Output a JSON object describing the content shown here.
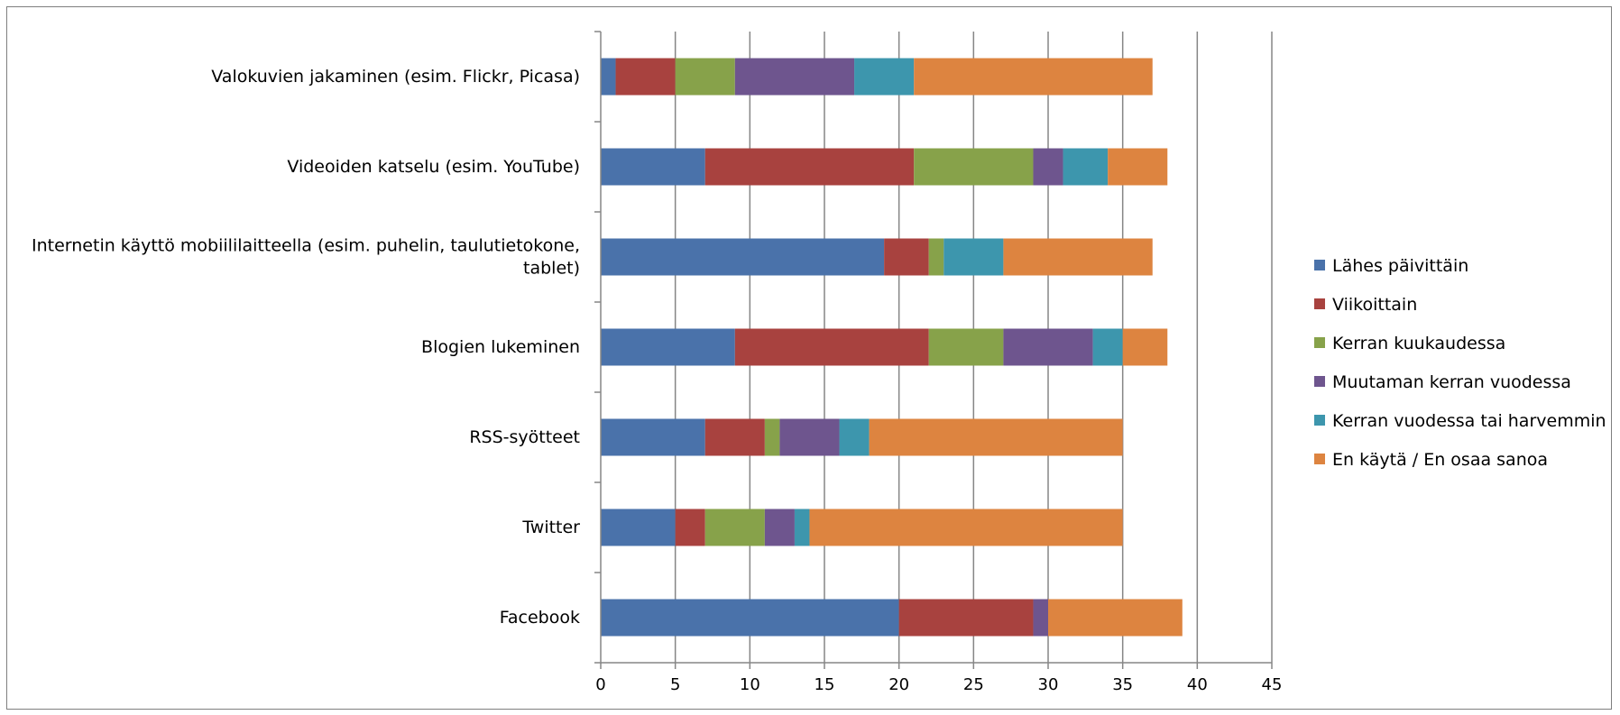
{
  "chart_data": {
    "type": "bar",
    "orientation": "horizontal",
    "stacked": true,
    "categories": [
      [
        "Valokuvien jakaminen (esim. Flickr, Picasa)"
      ],
      [
        "Videoiden katselu (esim. YouTube)"
      ],
      [
        "Internetin käyttö mobiililaitteella (esim. puhelin, taulutietokone,",
        "tablet)"
      ],
      [
        "Blogien lukeminen"
      ],
      [
        "RSS-syötteet"
      ],
      [
        "Twitter"
      ],
      [
        "Facebook"
      ]
    ],
    "series": [
      {
        "name": "Lähes päivittäin",
        "color": "#4a72aa",
        "values": [
          1,
          7,
          19,
          9,
          7,
          5,
          20
        ]
      },
      {
        "name": "Viikoittain",
        "color": "#a8423f",
        "values": [
          4,
          14,
          3,
          13,
          4,
          2,
          9
        ]
      },
      {
        "name": "Kerran kuukaudessa",
        "color": "#87a24a",
        "values": [
          4,
          8,
          1,
          5,
          1,
          4,
          0
        ]
      },
      {
        "name": "Muutaman kerran vuodessa",
        "color": "#6e558e",
        "values": [
          8,
          2,
          0,
          6,
          4,
          2,
          1
        ]
      },
      {
        "name": "Kerran vuodessa tai harvemmin",
        "color": "#3d96ad",
        "values": [
          4,
          3,
          4,
          2,
          2,
          1,
          0
        ]
      },
      {
        "name": "En käytä / En osaa sanoa",
        "color": "#dd8440",
        "values": [
          16,
          4,
          10,
          3,
          17,
          21,
          9
        ]
      }
    ],
    "xlim": [
      0,
      45
    ],
    "xticks": [
      "0",
      "5",
      "10",
      "15",
      "20",
      "25",
      "30",
      "35",
      "40",
      "45"
    ],
    "grid": true,
    "legend_position": "right"
  }
}
